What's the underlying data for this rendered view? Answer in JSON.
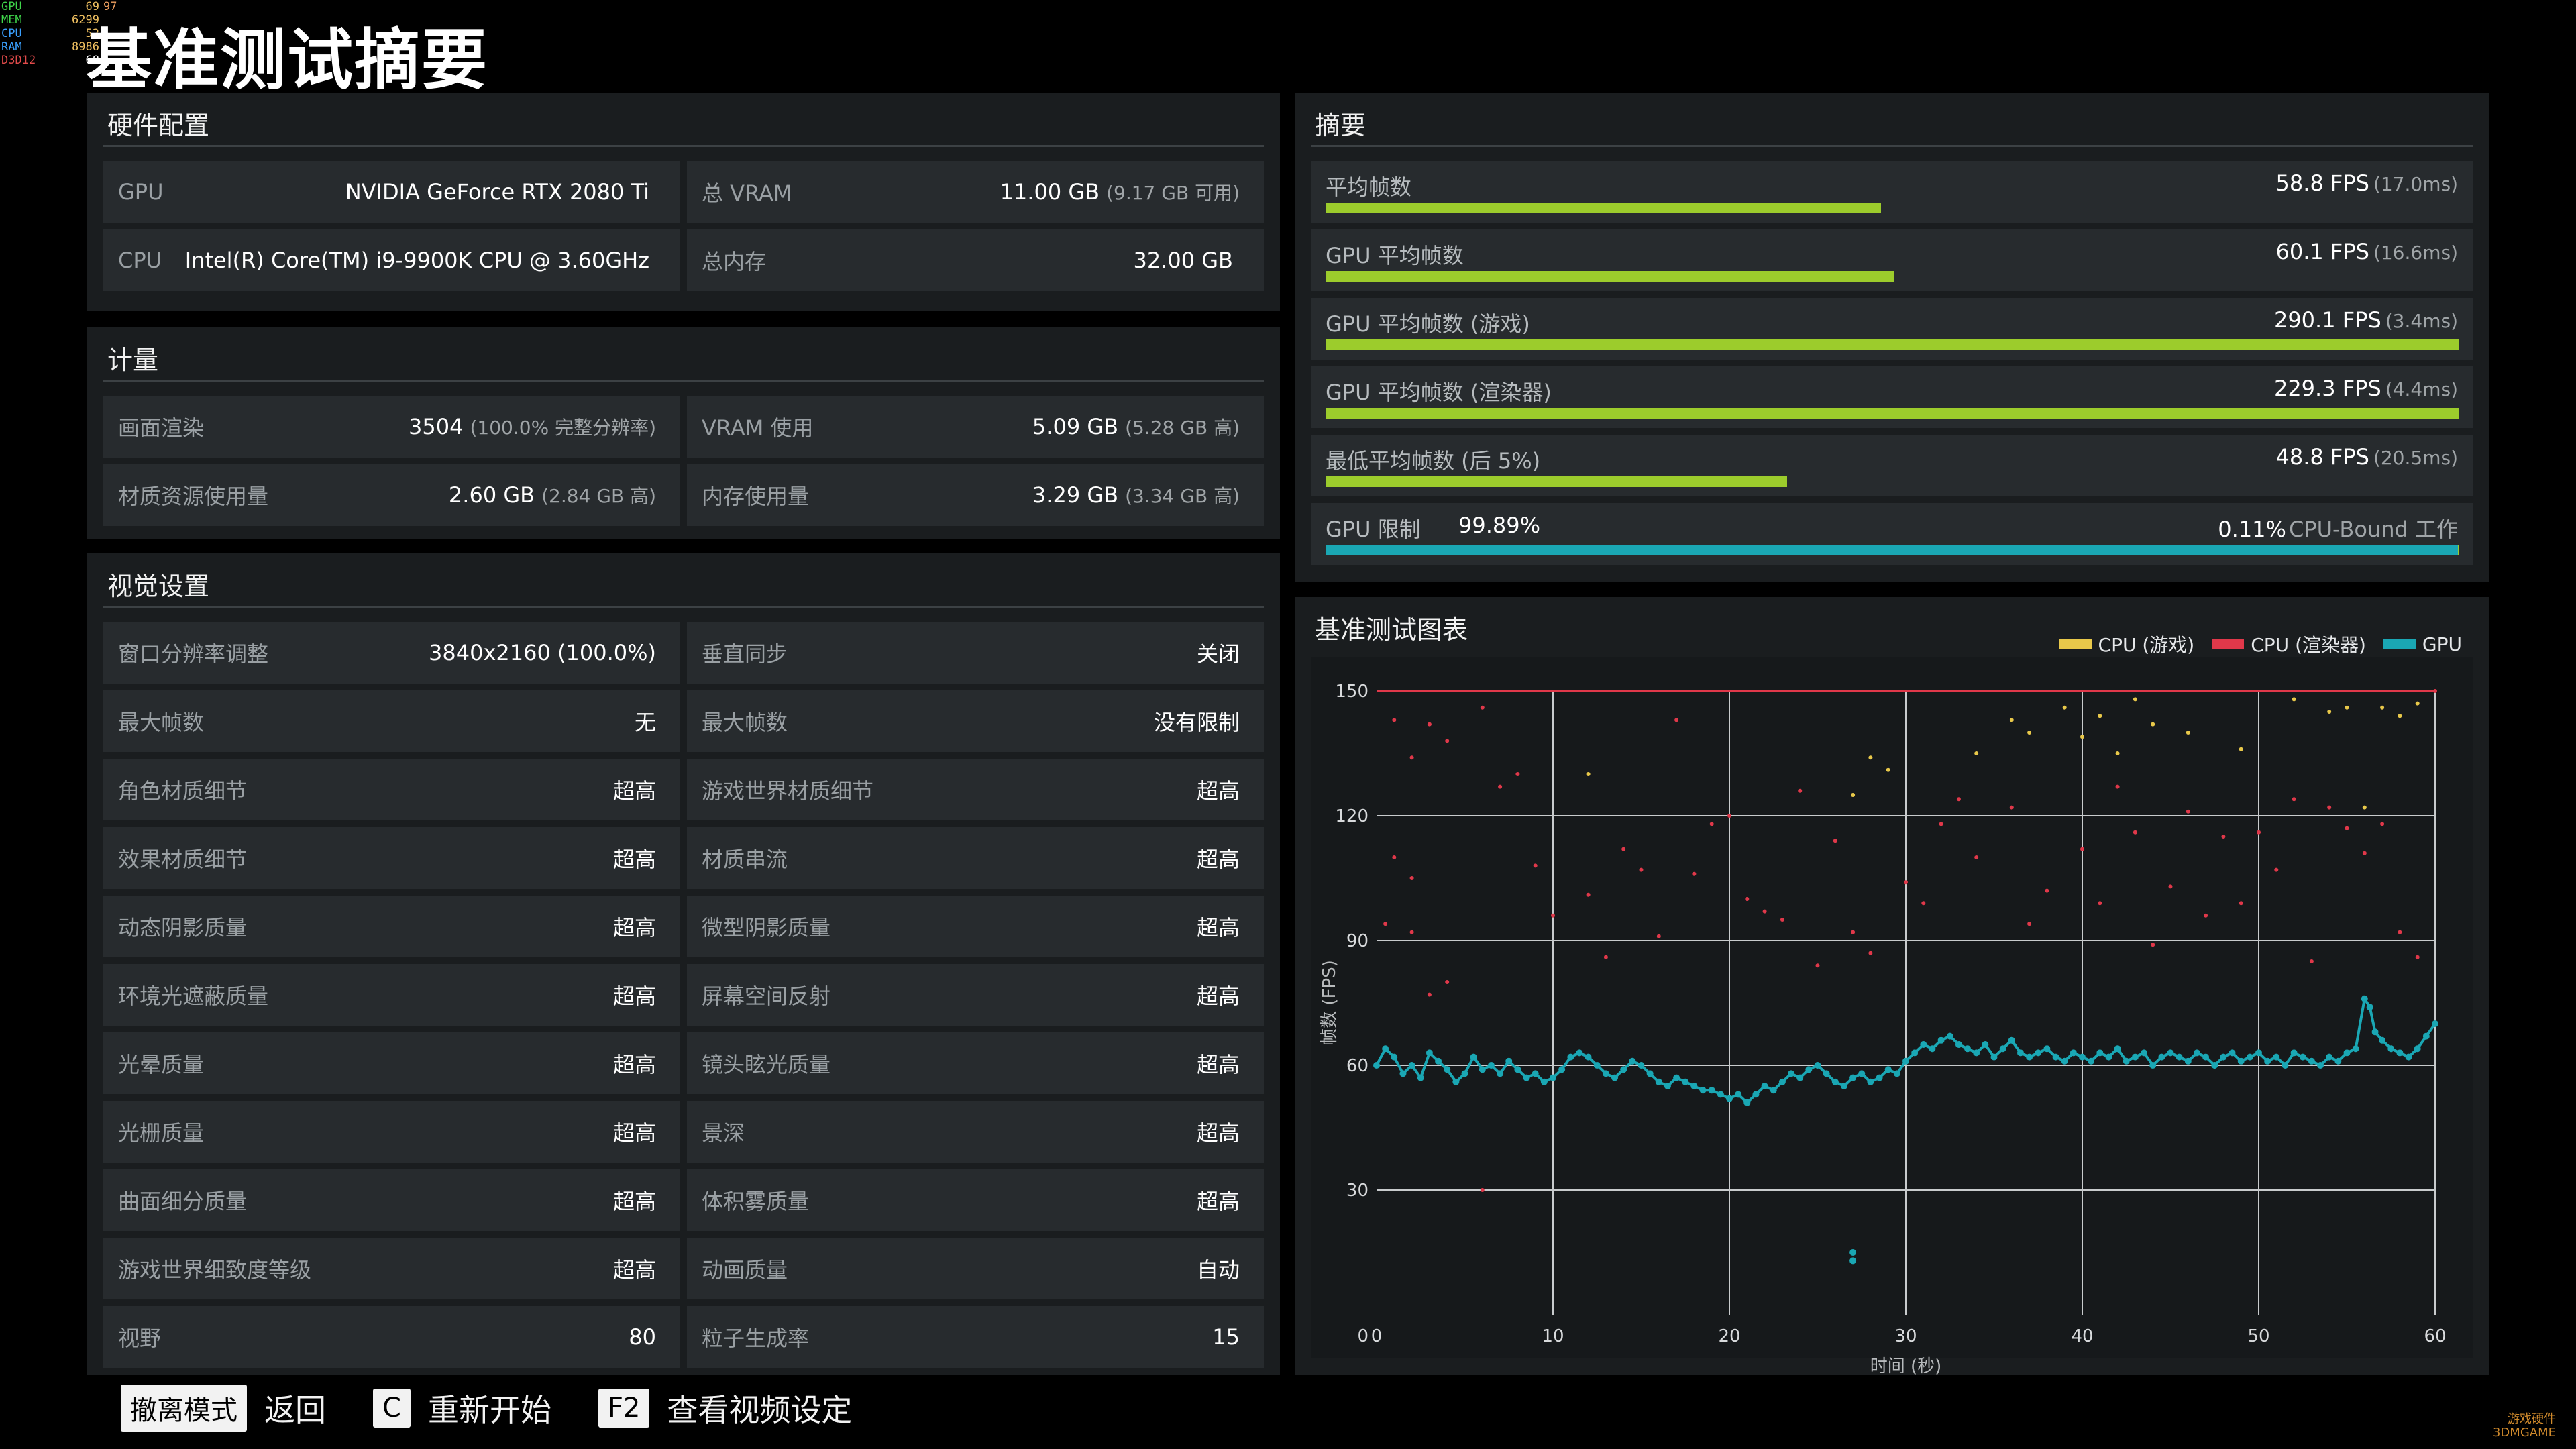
{
  "overlay": [
    {
      "k": "GPU",
      "v": "69",
      "v2": "97"
    },
    {
      "k": "MEM",
      "v": "6299",
      "v2": ""
    },
    {
      "k": "CPU",
      "v": "52",
      "v2": ""
    },
    {
      "k": "RAM",
      "v": "8986",
      "v2": ""
    },
    {
      "k": "D3D12",
      "v": "68",
      "v2": ""
    }
  ],
  "page_title": "基准测试摘要",
  "hardware": {
    "title": "硬件配置",
    "rows": [
      {
        "label": "GPU",
        "value": "NVIDIA GeForce RTX 2080 Ti",
        "sub": ""
      },
      {
        "label": "总 VRAM",
        "value": "11.00 GB",
        "sub": "(9.17 GB 可用)"
      },
      {
        "label": "CPU",
        "value": "Intel(R) Core(TM) i9-9900K CPU @ 3.60GHz",
        "sub": ""
      },
      {
        "label": "总内存",
        "value": "32.00 GB",
        "sub": ""
      }
    ]
  },
  "metrics": {
    "title": "计量",
    "rows": [
      {
        "label": "画面渲染",
        "value": "3504",
        "sub": "(100.0% 完整分辨率)"
      },
      {
        "label": "VRAM 使用",
        "value": "5.09 GB",
        "sub": "(5.28 GB 高)"
      },
      {
        "label": "材质资源使用量",
        "value": "2.60 GB",
        "sub": "(2.84 GB 高)"
      },
      {
        "label": "内存使用量",
        "value": "3.29 GB",
        "sub": "(3.34 GB 高)"
      }
    ]
  },
  "visual": {
    "title": "视觉设置",
    "rows": [
      {
        "label": "窗口分辨率调整",
        "value": "3840x2160 (100.0%)"
      },
      {
        "label": "垂直同步",
        "value": "关闭"
      },
      {
        "label": "最大帧数",
        "value": "无"
      },
      {
        "label": "最大帧数",
        "value": "没有限制"
      },
      {
        "label": "角色材质细节",
        "value": "超高"
      },
      {
        "label": "游戏世界材质细节",
        "value": "超高"
      },
      {
        "label": "效果材质细节",
        "value": "超高"
      },
      {
        "label": "材质串流",
        "value": "超高"
      },
      {
        "label": "动态阴影质量",
        "value": "超高"
      },
      {
        "label": "微型阴影质量",
        "value": "超高"
      },
      {
        "label": "环境光遮蔽质量",
        "value": "超高"
      },
      {
        "label": "屏幕空间反射",
        "value": "超高"
      },
      {
        "label": "光晕质量",
        "value": "超高"
      },
      {
        "label": "镜头眩光质量",
        "value": "超高"
      },
      {
        "label": "光栅质量",
        "value": "超高"
      },
      {
        "label": "景深",
        "value": "超高"
      },
      {
        "label": "曲面细分质量",
        "value": "超高"
      },
      {
        "label": "体积雾质量",
        "value": "超高"
      },
      {
        "label": "游戏世界细致度等级",
        "value": "超高"
      },
      {
        "label": "动画质量",
        "value": "自动"
      },
      {
        "label": "视野",
        "value": "80"
      },
      {
        "label": "粒子生成率",
        "value": "15"
      }
    ]
  },
  "summary": {
    "title": "摘要",
    "rows": [
      {
        "label": "平均帧数",
        "value": "58.8 FPS",
        "sub": "(17.0ms)",
        "fraction": 0.49,
        "color": "#9ccc2c"
      },
      {
        "label": "GPU 平均帧数",
        "value": "60.1 FPS",
        "sub": "(16.6ms)",
        "fraction": 0.502,
        "color": "#9ccc2c"
      },
      {
        "label": "GPU 平均帧数 (游戏)",
        "value": "290.1 FPS",
        "sub": "(3.4ms)",
        "fraction": 1.0,
        "color": "#9ccc2c"
      },
      {
        "label": "GPU 平均帧数 (渲染器)",
        "value": "229.3 FPS",
        "sub": "(4.4ms)",
        "fraction": 1.0,
        "color": "#9ccc2c"
      },
      {
        "label": "最低平均帧数 (后 5%)",
        "value": "48.8 FPS",
        "sub": "(20.5ms)",
        "fraction": 0.407,
        "color": "#9ccc2c"
      }
    ],
    "limit": {
      "label": "GPU 限制",
      "gpu_value": "99.89%",
      "cpu_value": "0.11%",
      "cpu_label": "CPU-Bound 工作",
      "gpu_fraction": 0.9989,
      "gpu_color": "#1aa7b4",
      "cpu_color": "#9ccc2c"
    }
  },
  "chart_title": "基准测试图表",
  "chart_data": {
    "type": "scatter",
    "title": "基准测试图表",
    "xlabel": "时间 (秒)",
    "ylabel": "帧数 (FPS)",
    "xlim": [
      0,
      60
    ],
    "ylim": [
      0,
      150
    ],
    "xticks": [
      "0",
      "10",
      "20",
      "30",
      "40",
      "50",
      "60"
    ],
    "yticks": [
      "30",
      "60",
      "90",
      "120",
      "150"
    ],
    "grid": true,
    "legend": "top-right",
    "series": [
      {
        "name": "CPU (游戏)",
        "color": "#e8c84a",
        "points": [
          [
            27,
            125
          ],
          [
            29,
            131
          ],
          [
            34,
            135
          ],
          [
            36,
            143
          ],
          [
            37,
            140
          ],
          [
            39,
            146
          ],
          [
            40,
            139
          ],
          [
            41,
            144
          ],
          [
            42,
            135
          ],
          [
            43,
            148
          ],
          [
            44,
            142
          ],
          [
            46,
            140
          ],
          [
            49,
            136
          ],
          [
            52,
            148
          ],
          [
            54,
            145
          ],
          [
            55,
            146
          ],
          [
            56,
            122
          ],
          [
            57,
            146
          ],
          [
            58,
            144
          ],
          [
            59,
            147
          ],
          [
            12,
            130
          ],
          [
            28,
            134
          ]
        ]
      },
      {
        "name": "CPU (渲染器)",
        "color": "#e0384a",
        "points": [
          [
            1,
            143
          ],
          [
            2,
            134
          ],
          [
            3,
            142
          ],
          [
            4,
            138
          ],
          [
            1,
            110
          ],
          [
            2,
            105
          ],
          [
            0.5,
            94
          ],
          [
            2,
            92
          ],
          [
            3,
            77
          ],
          [
            4,
            80
          ],
          [
            6,
            146
          ],
          [
            7,
            127
          ],
          [
            8,
            130
          ],
          [
            9,
            108
          ],
          [
            10,
            96
          ],
          [
            12,
            101
          ],
          [
            13,
            86
          ],
          [
            14,
            112
          ],
          [
            15,
            107
          ],
          [
            16,
            91
          ],
          [
            17,
            143
          ],
          [
            18,
            106
          ],
          [
            19,
            118
          ],
          [
            20,
            120
          ],
          [
            21,
            100
          ],
          [
            22,
            97
          ],
          [
            23,
            95
          ],
          [
            24,
            126
          ],
          [
            25,
            84
          ],
          [
            26,
            114
          ],
          [
            27,
            92
          ],
          [
            28,
            87
          ],
          [
            30,
            104
          ],
          [
            31,
            99
          ],
          [
            32,
            118
          ],
          [
            33,
            124
          ],
          [
            34,
            110
          ],
          [
            36,
            122
          ],
          [
            37,
            94
          ],
          [
            38,
            102
          ],
          [
            40,
            112
          ],
          [
            41,
            99
          ],
          [
            42,
            127
          ],
          [
            43,
            116
          ],
          [
            44,
            89
          ],
          [
            45,
            103
          ],
          [
            46,
            121
          ],
          [
            47,
            96
          ],
          [
            48,
            115
          ],
          [
            49,
            99
          ],
          [
            50,
            116
          ],
          [
            51,
            107
          ],
          [
            52,
            124
          ],
          [
            53,
            85
          ],
          [
            54,
            122
          ],
          [
            55,
            117
          ],
          [
            56,
            111
          ],
          [
            57,
            118
          ],
          [
            58,
            92
          ],
          [
            59,
            86
          ],
          [
            6,
            30
          ],
          [
            60,
            150
          ]
        ]
      },
      {
        "name": "GPU",
        "color": "#1aa7b4",
        "points": [
          [
            0,
            60
          ],
          [
            0.5,
            64
          ],
          [
            1,
            62
          ],
          [
            1.5,
            58
          ],
          [
            2,
            60
          ],
          [
            2.5,
            57
          ],
          [
            3,
            63
          ],
          [
            3.5,
            61
          ],
          [
            4,
            59
          ],
          [
            4.5,
            56
          ],
          [
            5,
            58
          ],
          [
            5.5,
            62
          ],
          [
            6,
            59
          ],
          [
            6.5,
            60
          ],
          [
            7,
            58
          ],
          [
            7.5,
            61
          ],
          [
            8,
            59
          ],
          [
            8.5,
            57
          ],
          [
            9,
            58
          ],
          [
            9.5,
            56
          ],
          [
            10,
            57
          ],
          [
            10.5,
            59
          ],
          [
            11,
            62
          ],
          [
            11.5,
            63
          ],
          [
            12,
            62
          ],
          [
            12.5,
            60
          ],
          [
            13,
            58
          ],
          [
            13.5,
            57
          ],
          [
            14,
            59
          ],
          [
            14.5,
            61
          ],
          [
            15,
            60
          ],
          [
            15.5,
            58
          ],
          [
            16,
            56
          ],
          [
            16.5,
            55
          ],
          [
            17,
            57
          ],
          [
            17.5,
            56
          ],
          [
            18,
            55
          ],
          [
            18.5,
            54
          ],
          [
            19,
            54
          ],
          [
            19.5,
            53
          ],
          [
            20,
            52
          ],
          [
            20.5,
            53
          ],
          [
            21,
            51
          ],
          [
            21.5,
            53
          ],
          [
            22,
            55
          ],
          [
            22.5,
            54
          ],
          [
            23,
            56
          ],
          [
            23.5,
            58
          ],
          [
            24,
            57
          ],
          [
            24.5,
            59
          ],
          [
            25,
            60
          ],
          [
            25.5,
            58
          ],
          [
            26,
            56
          ],
          [
            26.5,
            55
          ],
          [
            27,
            57
          ],
          [
            27.5,
            58
          ],
          [
            28,
            56
          ],
          [
            28.5,
            57
          ],
          [
            29,
            59
          ],
          [
            29.5,
            58
          ],
          [
            30,
            61
          ],
          [
            30.5,
            63
          ],
          [
            31,
            65
          ],
          [
            31.5,
            64
          ],
          [
            32,
            66
          ],
          [
            32.5,
            67
          ],
          [
            33,
            65
          ],
          [
            33.5,
            64
          ],
          [
            34,
            63
          ],
          [
            34.5,
            65
          ],
          [
            35,
            62
          ],
          [
            35.5,
            64
          ],
          [
            36,
            66
          ],
          [
            36.5,
            63
          ],
          [
            37,
            62
          ],
          [
            37.5,
            63
          ],
          [
            38,
            64
          ],
          [
            38.5,
            62
          ],
          [
            39,
            61
          ],
          [
            39.5,
            63
          ],
          [
            40,
            62
          ],
          [
            40.5,
            61
          ],
          [
            41,
            63
          ],
          [
            41.5,
            62
          ],
          [
            42,
            64
          ],
          [
            42.5,
            61
          ],
          [
            43,
            62
          ],
          [
            43.5,
            63
          ],
          [
            44,
            60
          ],
          [
            44.5,
            62
          ],
          [
            45,
            63
          ],
          [
            45.5,
            62
          ],
          [
            46,
            61
          ],
          [
            46.5,
            63
          ],
          [
            47,
            62
          ],
          [
            47.5,
            60
          ],
          [
            48,
            62
          ],
          [
            48.5,
            63
          ],
          [
            49,
            61
          ],
          [
            49.5,
            62
          ],
          [
            50,
            63
          ],
          [
            50.5,
            61
          ],
          [
            51,
            62
          ],
          [
            51.5,
            60
          ],
          [
            52,
            63
          ],
          [
            52.5,
            62
          ],
          [
            53,
            61
          ],
          [
            53.5,
            60
          ],
          [
            54,
            62
          ],
          [
            54.5,
            61
          ],
          [
            55,
            63
          ],
          [
            55.5,
            64
          ],
          [
            56,
            76
          ],
          [
            56.3,
            74
          ],
          [
            56.6,
            68
          ],
          [
            57,
            66
          ],
          [
            57.5,
            64
          ],
          [
            58,
            63
          ],
          [
            58.5,
            62
          ],
          [
            59,
            64
          ],
          [
            59.5,
            67
          ],
          [
            60,
            70
          ],
          [
            27,
            15
          ],
          [
            27,
            13
          ]
        ]
      }
    ]
  },
  "footer": {
    "items": [
      {
        "key": "撤离模式",
        "text": "返回"
      },
      {
        "key": "C",
        "text": "重新开始"
      },
      {
        "key": "F2",
        "text": "查看视频设定"
      }
    ]
  },
  "watermark": {
    "line1": "游戏硬件",
    "line2": "3DMGAME"
  }
}
